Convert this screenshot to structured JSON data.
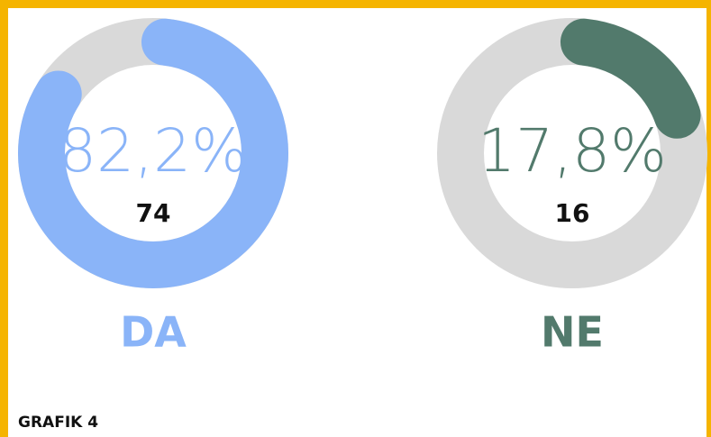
{
  "chart_data": [
    {
      "type": "donut",
      "categories": [
        "DA"
      ],
      "values": [
        82.2
      ],
      "value_labels": [
        "82,2%"
      ],
      "counts": [
        74
      ],
      "color": "#8ab4f8"
    },
    {
      "type": "donut",
      "categories": [
        "NE"
      ],
      "values": [
        17.8
      ],
      "value_labels": [
        "17,8%"
      ],
      "counts": [
        16
      ],
      "color": "#527a6c"
    }
  ],
  "caption": "GRAFIK 4"
}
